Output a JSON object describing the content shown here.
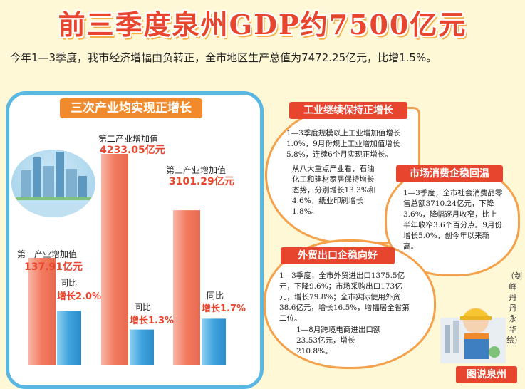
{
  "title": "前三季度泉州GDP约7500亿元",
  "subtitle": "今年1—3季度，我市经济增幅由负转正，全市地区生产总值为7472.25亿元，比增1.5%。",
  "left_banner": "三次产业均实现正增长",
  "chart_data": {
    "type": "bar",
    "categories": [
      "第一产业增加值",
      "第二产业增加值",
      "第三产业增加值"
    ],
    "series": [
      {
        "name": "",
        "values": [
          137.91,
          4233.05,
          3101.29
        ]
      },
      {
        "name": "同比",
        "values": [
          2.0,
          1.3,
          1.7
        ]
      }
    ],
    "value_labels": [
      "137.91亿元",
      "4233.05亿元",
      "3101.29亿元"
    ],
    "yoy_title": "同比",
    "yoy_labels": [
      "增长2.0%",
      "增长1.3%",
      "增长1.7%"
    ],
    "colors": {
      "value_bar": "#f2836b",
      "yoy_bar": "#3fa3dd"
    }
  },
  "industry": {
    "title": "工业继续保持正增长",
    "p1": "1—3季度规模以上工业增加值增长1.0%，9月份规上工业增加值增长5.8%，连续6个月实现正增长。",
    "p2": "从八大重点产业看，石油化工和建材家居保持增长态势，分别增长13.3%和4.6%，纸业印刷增长1.8%。"
  },
  "consumption": {
    "title": "市场消费企稳回温",
    "p1": "1—3季度，全市社会消费品零售总额3710.24亿元，下降3.6%，降幅逐月收窄，比上半年收窄3.6个百分点。9月份增长5.0%，创今年以来新高。"
  },
  "trade": {
    "title": "外贸出口企稳向好",
    "p1": "1—3季度，全市外贸进出口1375.5亿元，下降9.6%；市场采购出口173亿元，增长79.8%；全市实际使用外资38.6亿元，增长16.5%，增幅居全省第二位。",
    "p2": "1—8月跨境电商进出口额23.53亿元，增长210.8%。"
  },
  "credit": "（剑峰 丹丹 永华 绘）",
  "brand": "图说泉州",
  "colors": {
    "accent": "#e8452e",
    "blue": "#59b7e3",
    "orange": "#f08a2c",
    "bg": "#fff8d6"
  }
}
